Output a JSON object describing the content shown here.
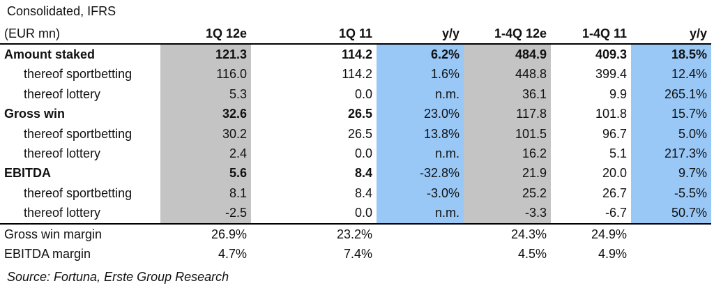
{
  "header": {
    "line1": "Consolidated, IFRS",
    "line2": "(EUR mn)",
    "columns": [
      "1Q 12e",
      "1Q 11",
      "y/y",
      "1-4Q 12e",
      "1-4Q 11",
      "y/y"
    ]
  },
  "rows": [
    {
      "label": "Amount staked",
      "values": [
        "121.3",
        "114.2",
        "6.2%",
        "484.9",
        "409.3",
        "18.5%"
      ]
    },
    {
      "label": "thereof sportbetting",
      "values": [
        "116.0",
        "114.2",
        "1.6%",
        "448.8",
        "399.4",
        "12.4%"
      ]
    },
    {
      "label": "thereof lottery",
      "values": [
        "5.3",
        "0.0",
        "n.m.",
        "36.1",
        "9.9",
        "265.1%"
      ]
    },
    {
      "label": "Gross win",
      "values": [
        "32.6",
        "26.5",
        "23.0%",
        "117.8",
        "101.8",
        "15.7%"
      ]
    },
    {
      "label": "thereof sportbetting",
      "values": [
        "30.2",
        "26.5",
        "13.8%",
        "101.5",
        "96.7",
        "5.0%"
      ]
    },
    {
      "label": "thereof lottery",
      "values": [
        "2.4",
        "0.0",
        "n.m.",
        "16.2",
        "5.1",
        "217.3%"
      ]
    },
    {
      "label": "EBITDA",
      "values": [
        "5.6",
        "8.4",
        "-32.8%",
        "21.9",
        "20.0",
        "9.7%"
      ]
    },
    {
      "label": "thereof sportbetting",
      "values": [
        "8.1",
        "8.4",
        "-3.0%",
        "25.2",
        "26.7",
        "-5.5%"
      ]
    },
    {
      "label": "thereof lottery",
      "values": [
        "-2.5",
        "0.0",
        "n.m.",
        "-3.3",
        "-6.7",
        "50.7%"
      ]
    }
  ],
  "margins": [
    {
      "label": "Gross win margin",
      "values": [
        "26.9%",
        "23.2%",
        "",
        "24.3%",
        "24.9%",
        ""
      ]
    },
    {
      "label": "EBITDA margin",
      "values": [
        "4.7%",
        "7.4%",
        "",
        "4.5%",
        "4.9%",
        ""
      ]
    }
  ],
  "source": "Source: Fortuna, Erste Group Research",
  "colors": {
    "estimate_shade": "#c4c4c4",
    "yoy_shade": "#99c8f7"
  }
}
